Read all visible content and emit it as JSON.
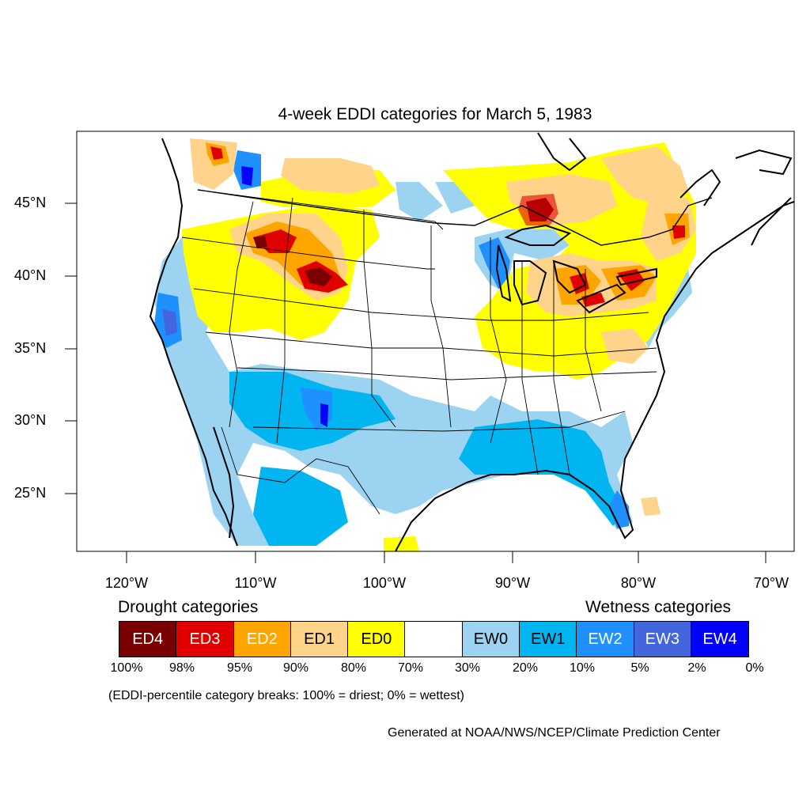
{
  "title": "4-week EDDI categories for March 5, 1983",
  "lat_labels": [
    "45°N",
    "40°N",
    "35°N",
    "30°N",
    "25°N"
  ],
  "lon_labels": [
    "120°W",
    "110°W",
    "100°W",
    "90°W",
    "80°W",
    "70°W"
  ],
  "legend": {
    "drought_heading": "Drought categories",
    "wetness_heading": "Wetness categories",
    "categories": [
      {
        "label": "ED4",
        "color": "#7a0000",
        "text_color": "#ffffff"
      },
      {
        "label": "ED3",
        "color": "#e00000",
        "text_color": "#ffffff"
      },
      {
        "label": "ED2",
        "color": "#ffa500",
        "text_color": "#ffffff"
      },
      {
        "label": "ED1",
        "color": "#ffd38a",
        "text_color": "#000000"
      },
      {
        "label": "ED0",
        "color": "#ffff00",
        "text_color": "#000000"
      },
      {
        "label": "",
        "color": "#ffffff",
        "text_color": "#000000"
      },
      {
        "label": "EW0",
        "color": "#9bd3f0",
        "text_color": "#000000"
      },
      {
        "label": "EW1",
        "color": "#00b5f0",
        "text_color": "#000000"
      },
      {
        "label": "EW2",
        "color": "#1e90ff",
        "text_color": "#ffffff"
      },
      {
        "label": "EW3",
        "color": "#4466dd",
        "text_color": "#ffffff"
      },
      {
        "label": "EW4",
        "color": "#0000ff",
        "text_color": "#ffffff"
      }
    ],
    "breaks": [
      "100%",
      "98%",
      "95%",
      "90%",
      "80%",
      "70%",
      "30%",
      "20%",
      "10%",
      "5%",
      "2%",
      "0%"
    ]
  },
  "note": "(EDDI-percentile category breaks: 100% = driest; 0% = wettest)",
  "credit": "Generated at NOAA/NWS/NCEP/Climate Prediction Center"
}
